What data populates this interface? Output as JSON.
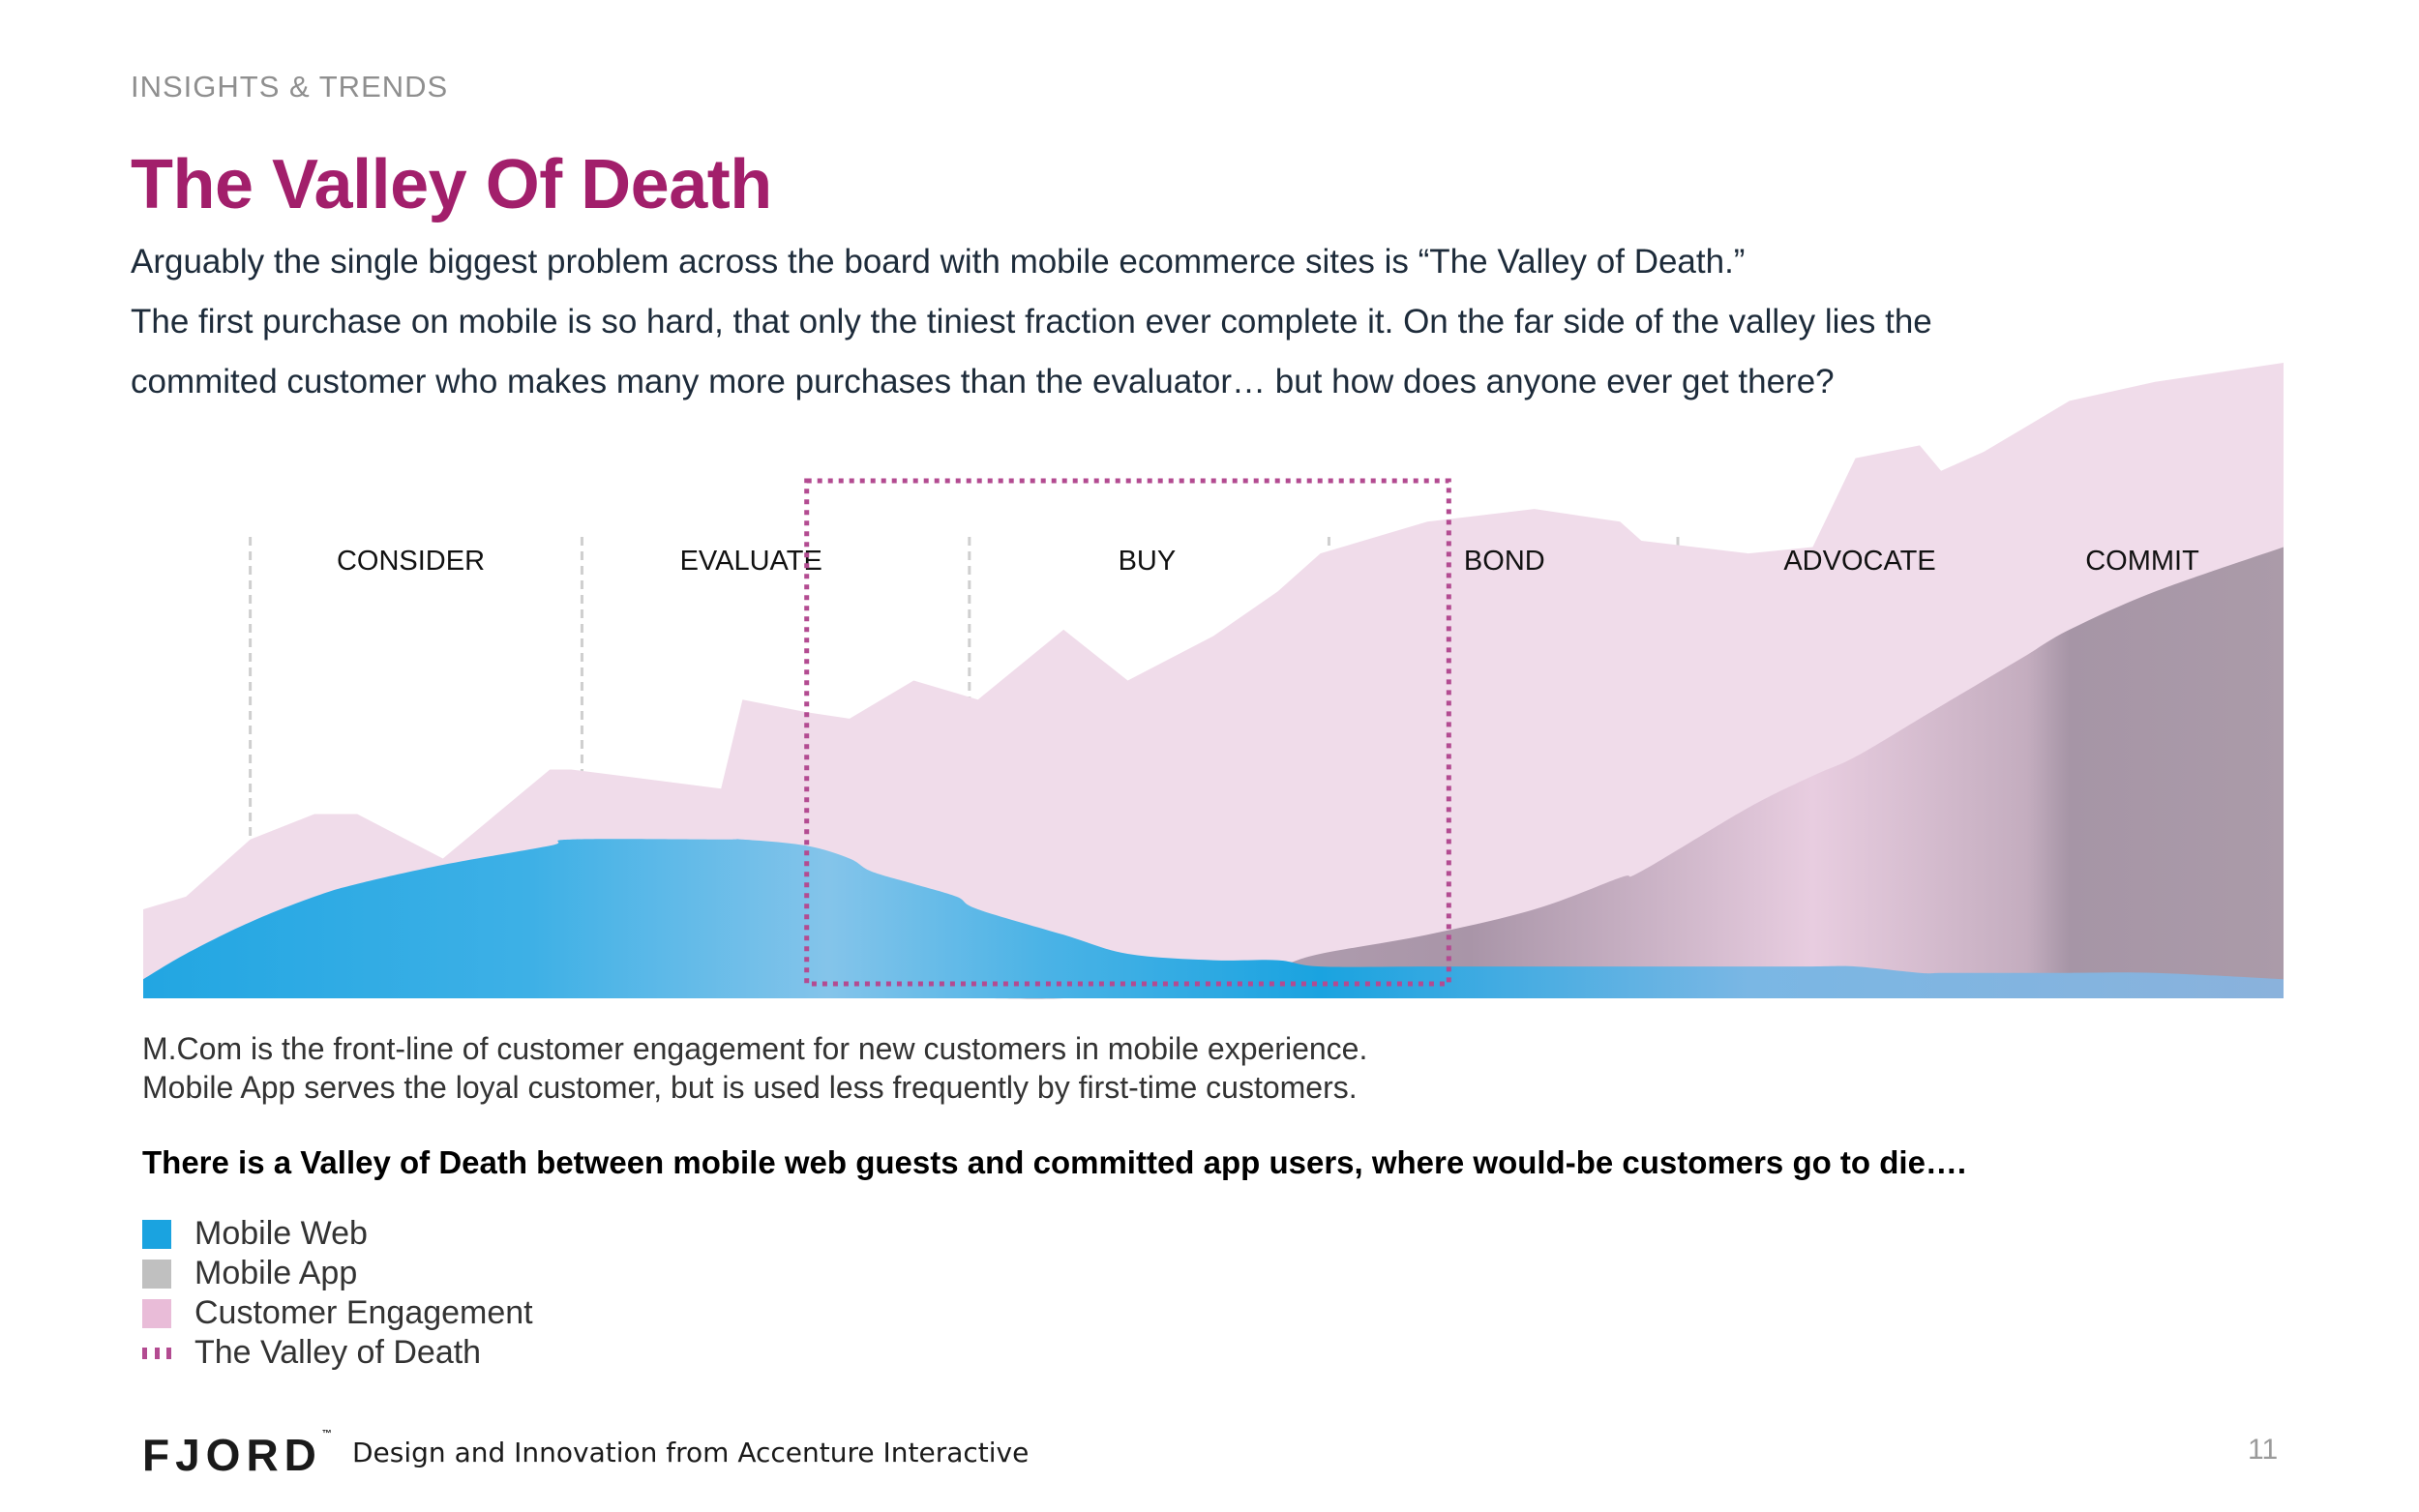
{
  "header": {
    "section": "INSIGHTS & TRENDS",
    "title": "The Valley Of Death",
    "intro_lines": [
      "Arguably the single biggest problem across the board with mobile ecommerce sites is “The Valley of Death.”",
      "The first purchase on mobile is so hard, that only the tiniest fraction ever complete it. On the far side of the valley lies the",
      "commited customer who makes many more purchases than the evaluator… but how does anyone ever get there?"
    ]
  },
  "chart_data": {
    "type": "area",
    "x": [
      0,
      0.02,
      0.05,
      0.08,
      0.1,
      0.14,
      0.19,
      0.2,
      0.27,
      0.28,
      0.31,
      0.33,
      0.34,
      0.36,
      0.38,
      0.39,
      0.43,
      0.46,
      0.5,
      0.53,
      0.55,
      0.6,
      0.65,
      0.69,
      0.7,
      0.75,
      0.78,
      0.8,
      0.83,
      0.84,
      0.86,
      0.88,
      0.9,
      0.94,
      1
    ],
    "stages": [
      "CONSIDER",
      "EVALUATE",
      "BUY",
      "BOND",
      "ADVOCATE",
      "COMMIT"
    ],
    "series": [
      {
        "name": "Customer Engagement",
        "values": [
          14,
          16,
          25,
          29,
          29,
          22,
          36,
          36,
          33,
          47,
          45,
          44,
          46,
          50,
          48,
          47,
          58,
          50,
          57,
          64,
          70,
          75,
          77,
          75,
          72,
          70,
          71,
          85,
          87,
          83,
          86,
          90,
          94,
          97,
          100
        ]
      },
      {
        "name": "Mobile Web",
        "values": [
          3,
          7,
          12,
          16,
          18,
          21,
          24,
          25,
          25,
          25,
          24,
          22,
          20,
          18,
          16,
          14,
          10,
          7,
          6,
          6,
          5,
          5,
          5,
          5,
          5,
          5,
          5,
          5,
          4,
          4,
          4,
          4,
          4,
          4,
          3
        ]
      },
      {
        "name": "Mobile App",
        "values": [
          0,
          0,
          0,
          0,
          0,
          0,
          0,
          0,
          0,
          0,
          0,
          0,
          0,
          0,
          0,
          0,
          0,
          1,
          3,
          5,
          7,
          10,
          14,
          19,
          20,
          30,
          35,
          38,
          44,
          46,
          50,
          54,
          58,
          64,
          71
        ]
      }
    ],
    "highlight": {
      "name": "The Valley of Death",
      "x_range": [
        0.31,
        0.61
      ]
    },
    "ylim": [
      0,
      100
    ],
    "grid": false,
    "legend_position": "bottom-left"
  },
  "notes": [
    "M.Com is the front-line of customer engagement for new customers in mobile experience.",
    "Mobile App serves the loyal customer, but is used less frequently by first-time customers."
  ],
  "bold_statement": "There is a Valley of Death between mobile web guests and committed app users, where would-be customers go to die….",
  "legend": [
    {
      "label": "Mobile Web",
      "color": "#1aa3e0",
      "kind": "box"
    },
    {
      "label": "Mobile App",
      "color": "#c0c0c0",
      "kind": "box"
    },
    {
      "label": "Customer Engagement",
      "color": "#e9bcd8",
      "kind": "box"
    },
    {
      "label": "The Valley of Death",
      "color": "#b34b91",
      "kind": "dotted"
    }
  ],
  "footer": {
    "logo": "FJORD",
    "logo_mark": "™",
    "tagline": "Design and Innovation from Accenture Interactive",
    "page": "11"
  }
}
